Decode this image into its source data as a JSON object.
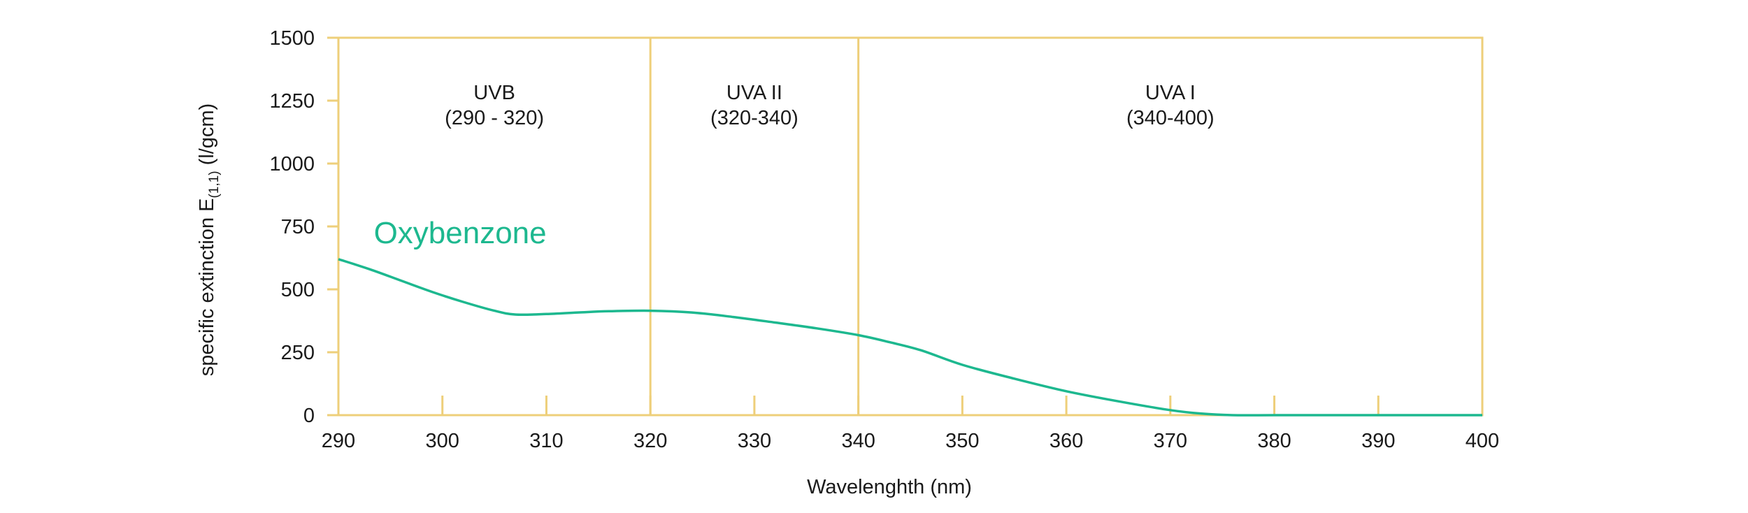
{
  "chart_data": {
    "type": "line",
    "xlabel": "Wavelenghth (nm)",
    "ylabel": {
      "prefix": "specific extinction E",
      "subscript": "(1,1)",
      "suffix": " (l/gcm)"
    },
    "xlim": [
      290,
      400
    ],
    "ylim": [
      0,
      1500
    ],
    "x_ticks": [
      290,
      300,
      310,
      320,
      330,
      340,
      350,
      360,
      370,
      380,
      390,
      400
    ],
    "y_ticks": [
      0,
      250,
      500,
      750,
      1000,
      1250,
      1500
    ],
    "grid": false,
    "regions": [
      {
        "name": "UVB",
        "range_label": "(290 - 320)",
        "x_start": 290,
        "x_end": 320
      },
      {
        "name": "UVA II",
        "range_label": "(320-340)",
        "x_start": 320,
        "x_end": 340
      },
      {
        "name": "UVA I",
        "range_label": "(340-400)",
        "x_start": 340,
        "x_end": 400
      }
    ],
    "series": [
      {
        "name": "Oxybenzone",
        "color": "#1db88f",
        "x": [
          290,
          293,
          296,
          299,
          302,
          305,
          307,
          310,
          313,
          316,
          320,
          324,
          328,
          332,
          336,
          340,
          343,
          346,
          350,
          355,
          360,
          365,
          370,
          373,
          376,
          380,
          385,
          390,
          395,
          400
        ],
        "y": [
          620,
          580,
          535,
          490,
          450,
          415,
          400,
          402,
          408,
          413,
          415,
          408,
          390,
          368,
          345,
          318,
          290,
          258,
          200,
          145,
          95,
          55,
          20,
          6,
          0,
          0,
          0,
          0,
          0,
          0
        ]
      }
    ],
    "colors": {
      "frame": "#eecf7a",
      "line": "#1db88f",
      "text": "#1a1a1a"
    }
  }
}
